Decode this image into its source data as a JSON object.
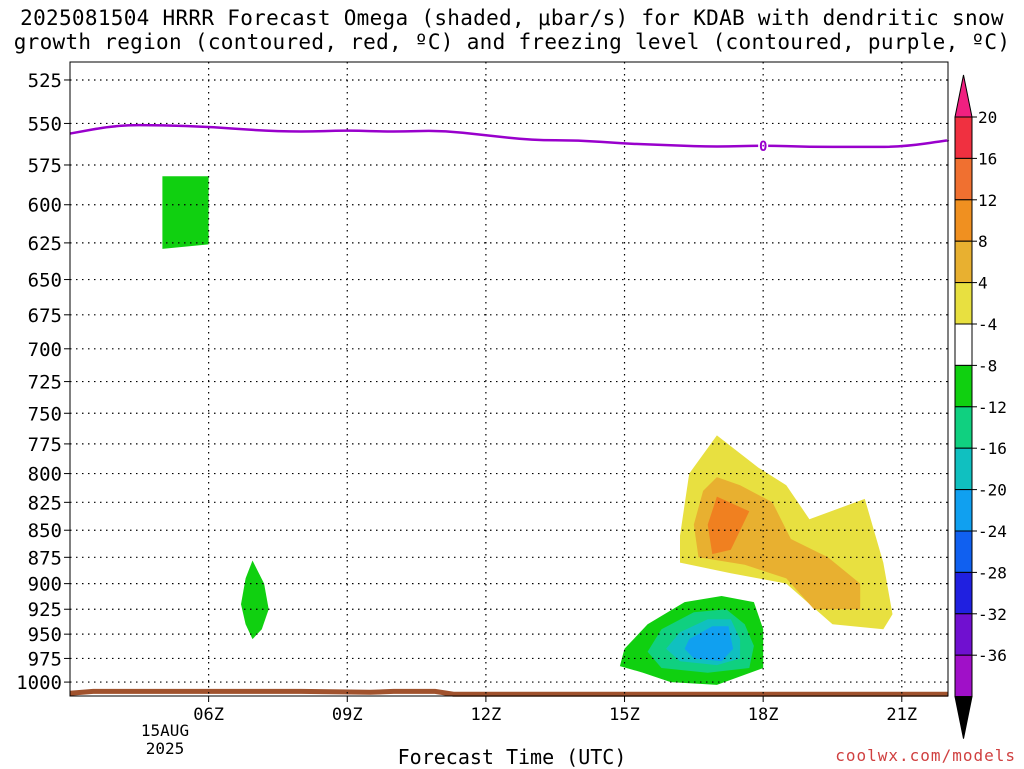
{
  "chart_data": {
    "type": "contour",
    "title": "2025081504 HRRR Forecast Omega (shaded, μbar/s) for KDAB with dendritic snow\ngrowth region (contoured, red, ºC) and freezing level (contoured, purple, ºC)",
    "xlabel": "Forecast Time (UTC)",
    "date_label": "15AUG\n2025",
    "x_ticks": [
      "06Z",
      "09Z",
      "12Z",
      "15Z",
      "18Z",
      "21Z"
    ],
    "x_tick_hours": [
      6,
      9,
      12,
      15,
      18,
      21
    ],
    "xlim_hours": [
      3,
      22
    ],
    "y_ticks": [
      525,
      550,
      575,
      600,
      625,
      650,
      675,
      700,
      725,
      750,
      775,
      800,
      825,
      850,
      875,
      900,
      925,
      950,
      975,
      1000
    ],
    "ylim": [
      1015,
      515
    ],
    "y_scale": "log-pressure",
    "grid": true,
    "colorbar": {
      "labels": [
        "20",
        "16",
        "12",
        "8",
        "4",
        "-4",
        "-8",
        "-12",
        "-16",
        "-20",
        "-24",
        "-28",
        "-32",
        "-36"
      ],
      "colors": [
        "#f02080",
        "#f03040",
        "#f07030",
        "#f09020",
        "#e8b030",
        "#e8e040",
        "#ffffff",
        "#10d010",
        "#10d080",
        "#10c0c0",
        "#10a0f0",
        "#1060f0",
        "#2020e0",
        "#7010d0",
        "#a010c8",
        "#a0a0a0"
      ]
    },
    "freezing_level": {
      "label": "0",
      "color": "#9900cc",
      "hours": [
        3,
        4,
        5,
        6,
        7,
        8,
        9,
        10,
        11,
        12,
        13,
        14,
        15,
        16,
        17,
        18,
        19,
        20,
        21,
        22
      ],
      "pressure": [
        556,
        551,
        551,
        552,
        554,
        555,
        554,
        555,
        554,
        557,
        560,
        560,
        562,
        563,
        564,
        563,
        564,
        564,
        564,
        560
      ]
    },
    "omega_regions": [
      {
        "value_range": "-8 to -4",
        "color": "#10d010",
        "polygon": [
          [
            5.0,
            582
          ],
          [
            6.0,
            582
          ],
          [
            6.0,
            626
          ],
          [
            5.0,
            629
          ]
        ]
      },
      {
        "value_range": "-8 to -4",
        "color": "#10d010",
        "polygon": [
          [
            6.95,
            878
          ],
          [
            7.2,
            900
          ],
          [
            7.3,
            925
          ],
          [
            7.15,
            945
          ],
          [
            6.95,
            955
          ],
          [
            6.8,
            940
          ],
          [
            6.7,
            920
          ],
          [
            6.8,
            895
          ]
        ]
      },
      {
        "value_range": "4 to 8",
        "color": "#e8e040",
        "polygon": [
          [
            17.0,
            768
          ],
          [
            17.9,
            795
          ],
          [
            18.5,
            810
          ],
          [
            19.0,
            840
          ],
          [
            20.2,
            822
          ],
          [
            20.6,
            880
          ],
          [
            20.8,
            930
          ],
          [
            20.6,
            945
          ],
          [
            19.5,
            940
          ],
          [
            18.5,
            900
          ],
          [
            17.3,
            890
          ],
          [
            16.2,
            880
          ],
          [
            16.2,
            855
          ],
          [
            16.4,
            800
          ]
        ]
      },
      {
        "value_range": "8 to 12",
        "color": "#e8b030",
        "polygon": [
          [
            17.0,
            803
          ],
          [
            17.5,
            810
          ],
          [
            18.2,
            825
          ],
          [
            18.6,
            858
          ],
          [
            19.4,
            875
          ],
          [
            20.1,
            900
          ],
          [
            20.1,
            925
          ],
          [
            19.1,
            925
          ],
          [
            18.5,
            895
          ],
          [
            17.6,
            882
          ],
          [
            16.6,
            875
          ],
          [
            16.5,
            845
          ],
          [
            16.7,
            815
          ]
        ]
      },
      {
        "value_range": "12 to 16",
        "color": "#f08020",
        "polygon": [
          [
            17.0,
            820
          ],
          [
            17.7,
            833
          ],
          [
            17.3,
            868
          ],
          [
            16.9,
            872
          ],
          [
            16.8,
            845
          ]
        ]
      },
      {
        "value_range": "-8 to -4",
        "color": "#10d010",
        "polygon": [
          [
            15.5,
            940
          ],
          [
            16.3,
            918
          ],
          [
            17.1,
            912
          ],
          [
            17.8,
            918
          ],
          [
            18.0,
            945
          ],
          [
            18.0,
            985
          ],
          [
            17.0,
            1003
          ],
          [
            16.0,
            1000
          ],
          [
            15.4,
            990
          ],
          [
            14.9,
            983
          ],
          [
            15.0,
            965
          ]
        ]
      },
      {
        "value_range": "-12 to -8",
        "color": "#10d080",
        "polygon": [
          [
            15.8,
            945
          ],
          [
            16.5,
            928
          ],
          [
            17.2,
            925
          ],
          [
            17.6,
            940
          ],
          [
            17.8,
            962
          ],
          [
            17.7,
            985
          ],
          [
            16.8,
            990
          ],
          [
            15.8,
            985
          ],
          [
            15.5,
            968
          ]
        ]
      },
      {
        "value_range": "-16 to -12",
        "color": "#10c0c0",
        "polygon": [
          [
            16.2,
            948
          ],
          [
            16.8,
            935
          ],
          [
            17.3,
            935
          ],
          [
            17.5,
            955
          ],
          [
            17.5,
            975
          ],
          [
            17.0,
            982
          ],
          [
            16.2,
            978
          ],
          [
            15.9,
            965
          ]
        ]
      },
      {
        "value_range": "-20 to -16",
        "color": "#10a0f0",
        "polygon": [
          [
            16.4,
            955
          ],
          [
            16.9,
            942
          ],
          [
            17.25,
            942
          ],
          [
            17.35,
            965
          ],
          [
            17.1,
            978
          ],
          [
            16.5,
            975
          ],
          [
            16.3,
            965
          ]
        ]
      }
    ],
    "surface_line": {
      "color": "#a0522d",
      "hours": [
        3,
        3.5,
        5,
        8,
        9.5,
        10,
        10.9,
        11.3,
        14,
        18,
        22
      ],
      "pressure": [
        1012,
        1010,
        1010,
        1010,
        1011,
        1010,
        1010,
        1013,
        1013,
        1013,
        1013
      ]
    }
  },
  "credit": "coolwx.com/models"
}
